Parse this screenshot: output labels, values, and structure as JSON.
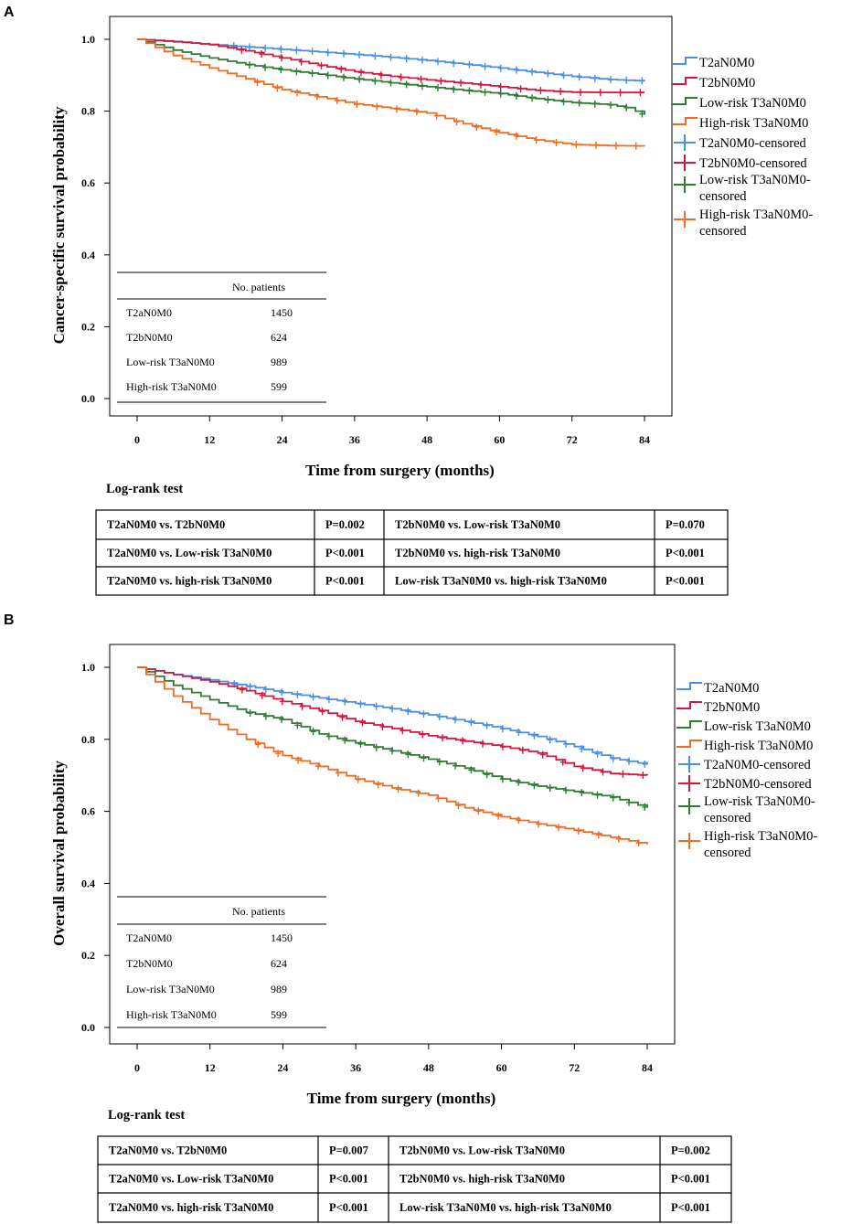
{
  "chart_data": [
    {
      "panel": "A",
      "type": "line",
      "title": "",
      "xlabel": "Time from surgery (months)",
      "ylabel": "Cancer-specific survival probability",
      "xlim": [
        0,
        84
      ],
      "ylim": [
        0.0,
        1.0
      ],
      "xticks": [
        0,
        12,
        24,
        36,
        48,
        60,
        72,
        84
      ],
      "xtick_labels": [
        "0",
        "12",
        "24",
        "36",
        "48",
        "60",
        "72",
        "84"
      ],
      "yticks": [
        0.0,
        0.2,
        0.4,
        0.6,
        0.8,
        1.0
      ],
      "ytick_labels": [
        "0.0",
        "0.2",
        "0.4",
        "0.6",
        "0.8",
        "1.0"
      ],
      "legend_position": "right",
      "legend": [
        "T2aN0M0",
        "T2bN0M0",
        "Low-risk T3aN0M0",
        "High-risk T3aN0M0",
        "T2aN0M0-censored",
        "T2bN0M0-censored",
        "Low-risk T3aN0M0-censored",
        "High-risk T3aN0M0-censored"
      ],
      "series": [
        {
          "name": "T2aN0M0",
          "color": "#4a90e2",
          "x": [
            0,
            6,
            12,
            18,
            24,
            30,
            36,
            42,
            48,
            54,
            60,
            66,
            72,
            78,
            84
          ],
          "y": [
            1.0,
            0.993,
            0.986,
            0.979,
            0.972,
            0.965,
            0.958,
            0.95,
            0.941,
            0.931,
            0.92,
            0.908,
            0.897,
            0.888,
            0.884
          ]
        },
        {
          "name": "T2bN0M0",
          "color": "#d6163d",
          "x": [
            0,
            6,
            12,
            18,
            24,
            30,
            36,
            42,
            48,
            54,
            60,
            66,
            72,
            78,
            84
          ],
          "y": [
            1.0,
            0.994,
            0.985,
            0.968,
            0.948,
            0.928,
            0.91,
            0.897,
            0.887,
            0.878,
            0.868,
            0.858,
            0.853,
            0.852,
            0.852
          ]
        },
        {
          "name": "Low-risk T3aN0M0",
          "color": "#2e7d32",
          "x": [
            0,
            6,
            12,
            18,
            24,
            30,
            36,
            42,
            48,
            54,
            60,
            66,
            72,
            78,
            81,
            84
          ],
          "y": [
            1.0,
            0.97,
            0.948,
            0.93,
            0.915,
            0.903,
            0.89,
            0.879,
            0.868,
            0.858,
            0.849,
            0.835,
            0.824,
            0.818,
            0.81,
            0.79
          ]
        },
        {
          "name": "High-risk T3aN0M0",
          "color": "#f26b21",
          "x": [
            0,
            6,
            12,
            18,
            24,
            30,
            36,
            42,
            48,
            54,
            60,
            66,
            72,
            78,
            84
          ],
          "y": [
            1.0,
            0.955,
            0.92,
            0.89,
            0.86,
            0.84,
            0.82,
            0.808,
            0.795,
            0.765,
            0.74,
            0.72,
            0.707,
            0.704,
            0.703
          ]
        }
      ],
      "inset_table": {
        "header": "No. patients",
        "rows": [
          {
            "group": "T2aN0M0",
            "n": "1450"
          },
          {
            "group": "T2bN0M0",
            "n": "624"
          },
          {
            "group": "Low-risk T3aN0M0",
            "n": "989"
          },
          {
            "group": "High-risk T3aN0M0",
            "n": "599"
          }
        ]
      }
    },
    {
      "panel": "B",
      "type": "line",
      "title": "",
      "xlabel": "Time from surgery (months)",
      "ylabel": "Overall survival probability",
      "xlim": [
        0,
        84
      ],
      "ylim": [
        0.0,
        1.0
      ],
      "xticks": [
        0,
        12,
        24,
        36,
        48,
        60,
        72,
        84
      ],
      "xtick_labels": [
        "0",
        "12",
        "24",
        "36",
        "48",
        "60",
        "72",
        "84"
      ],
      "yticks": [
        0.0,
        0.2,
        0.4,
        0.6,
        0.8,
        1.0
      ],
      "ytick_labels": [
        "0.0",
        "0.2",
        "0.4",
        "0.6",
        "0.8",
        "1.0"
      ],
      "legend_position": "right",
      "legend": [
        "T2aN0M0",
        "T2bN0M0",
        "Low-risk T3aN0M0",
        "High-risk T3aN0M0",
        "T2aN0M0-censored",
        "T2bN0M0-censored",
        "Low-risk T3aN0M0-censored",
        "High-risk T3aN0M0-censored"
      ],
      "series": [
        {
          "name": "T2aN0M0",
          "color": "#4a90e2",
          "x": [
            0,
            6,
            12,
            18,
            24,
            30,
            36,
            42,
            48,
            54,
            60,
            66,
            72,
            78,
            84
          ],
          "y": [
            1.0,
            0.98,
            0.965,
            0.948,
            0.93,
            0.915,
            0.9,
            0.885,
            0.868,
            0.85,
            0.83,
            0.808,
            0.78,
            0.748,
            0.73
          ]
        },
        {
          "name": "T2bN0M0",
          "color": "#d6163d",
          "x": [
            0,
            6,
            12,
            18,
            24,
            30,
            36,
            42,
            48,
            54,
            60,
            66,
            72,
            78,
            84
          ],
          "y": [
            1.0,
            0.98,
            0.96,
            0.935,
            0.905,
            0.88,
            0.85,
            0.83,
            0.81,
            0.795,
            0.78,
            0.762,
            0.725,
            0.705,
            0.7
          ]
        },
        {
          "name": "Low-risk T3aN0M0",
          "color": "#2e7d32",
          "x": [
            0,
            6,
            12,
            18,
            24,
            30,
            36,
            42,
            48,
            54,
            60,
            66,
            72,
            78,
            84
          ],
          "y": [
            1.0,
            0.95,
            0.91,
            0.875,
            0.855,
            0.815,
            0.79,
            0.768,
            0.745,
            0.72,
            0.69,
            0.67,
            0.655,
            0.64,
            0.61
          ]
        },
        {
          "name": "High-risk T3aN0M0",
          "color": "#f26b21",
          "x": [
            0,
            6,
            12,
            18,
            24,
            30,
            36,
            42,
            48,
            54,
            60,
            66,
            72,
            78,
            84
          ],
          "y": [
            1.0,
            0.92,
            0.855,
            0.8,
            0.755,
            0.725,
            0.69,
            0.665,
            0.645,
            0.61,
            0.585,
            0.565,
            0.548,
            0.528,
            0.508
          ]
        }
      ],
      "inset_table": {
        "header": "No. patients",
        "rows": [
          {
            "group": "T2aN0M0",
            "n": "1450"
          },
          {
            "group": "T2bN0M0",
            "n": "624"
          },
          {
            "group": "Low-risk T3aN0M0",
            "n": "989"
          },
          {
            "group": "High-risk T3aN0M0",
            "n": "599"
          }
        ]
      }
    }
  ],
  "log_rank": [
    {
      "heading": "Log-rank test",
      "rows": [
        {
          "c1": "T2aN0M0 vs. T2bN0M0",
          "p1": "P=0.002",
          "c2": "T2bN0M0 vs. Low-risk T3aN0M0",
          "p2": "P=0.070"
        },
        {
          "c1": "T2aN0M0 vs. Low-risk T3aN0M0",
          "p1": "P<0.001",
          "c2": "T2bN0M0 vs. high-risk T3aN0M0",
          "p2": "P<0.001"
        },
        {
          "c1": "T2aN0M0 vs. high-risk T3aN0M0",
          "p1": "P<0.001",
          "c2": "Low-risk T3aN0M0 vs. high-risk T3aN0M0",
          "p2": "P<0.001"
        }
      ]
    },
    {
      "heading": "Log-rank test",
      "rows": [
        {
          "c1": "T2aN0M0 vs. T2bN0M0",
          "p1": "P=0.007",
          "c2": "T2bN0M0 vs. Low-risk T3aN0M0",
          "p2": "P=0.002"
        },
        {
          "c1": "T2aN0M0 vs. Low-risk T3aN0M0",
          "p1": "P<0.001",
          "c2": "T2bN0M0 vs. high-risk T3aN0M0",
          "p2": "P<0.001"
        },
        {
          "c1": "T2aN0M0 vs. high-risk T3aN0M0",
          "p1": "P<0.001",
          "c2": "Low-risk T3aN0M0 vs. high-risk T3aN0M0",
          "p2": "P<0.001"
        }
      ]
    }
  ]
}
